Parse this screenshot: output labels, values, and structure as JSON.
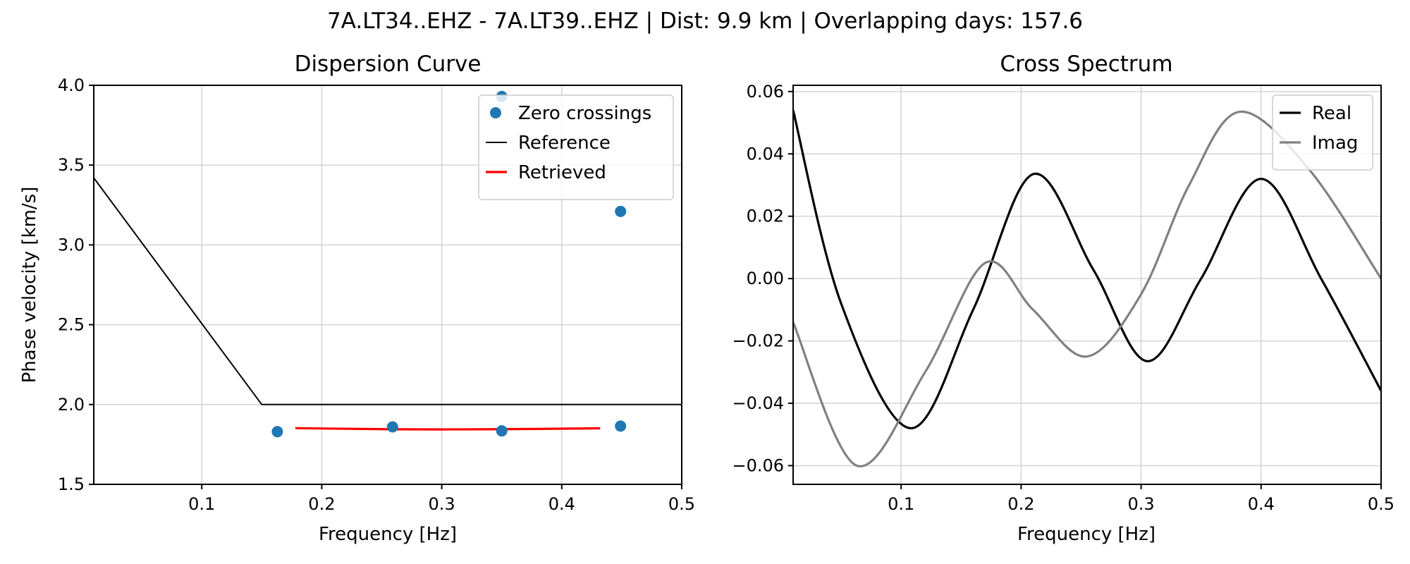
{
  "figure": {
    "suptitle": "7A.LT34..EHZ - 7A.LT39..EHZ | Dist: 9.9 km | Overlapping days: 157.6"
  },
  "chart_data": [
    {
      "type": "line",
      "title": "Dispersion Curve",
      "xlabel": "Frequency [Hz]",
      "ylabel": "Phase velocity [km/s]",
      "xlim": [
        0.01,
        0.5
      ],
      "ylim": [
        1.5,
        4.0
      ],
      "xticks": [
        0.1,
        0.2,
        0.3,
        0.4,
        0.5
      ],
      "xtick_labels": [
        "0.1",
        "0.2",
        "0.3",
        "0.4",
        "0.5"
      ],
      "yticks": [
        1.5,
        2.0,
        2.5,
        3.0,
        3.5,
        4.0
      ],
      "ytick_labels": [
        "1.5",
        "2.0",
        "2.5",
        "3.0",
        "3.5",
        "4.0"
      ],
      "grid": true,
      "legend_position": "top-right",
      "series": [
        {
          "name": "Zero crossings",
          "kind": "scatter",
          "color": "#1f77b4",
          "x": [
            0.163,
            0.259,
            0.35,
            0.449,
            0.35,
            0.449
          ],
          "y": [
            1.83,
            1.86,
            1.835,
            1.865,
            3.93,
            3.21
          ]
        },
        {
          "name": "Reference",
          "kind": "line",
          "color": "#000000",
          "x": [
            0.01,
            0.15,
            0.5
          ],
          "y": [
            3.42,
            2.0,
            2.0
          ]
        },
        {
          "name": "Retrieved",
          "kind": "line",
          "color": "#ff0000",
          "x": [
            0.178,
            0.22,
            0.26,
            0.3,
            0.34,
            0.38,
            0.432
          ],
          "y": [
            1.852,
            1.848,
            1.845,
            1.844,
            1.845,
            1.847,
            1.851
          ]
        }
      ]
    },
    {
      "type": "line",
      "title": "Cross Spectrum",
      "xlabel": "Frequency [Hz]",
      "ylabel": "",
      "xlim": [
        0.01,
        0.5
      ],
      "ylim": [
        -0.066,
        0.062
      ],
      "xticks": [
        0.1,
        0.2,
        0.3,
        0.4,
        0.5
      ],
      "xtick_labels": [
        "0.1",
        "0.2",
        "0.3",
        "0.4",
        "0.5"
      ],
      "yticks": [
        -0.06,
        -0.04,
        -0.02,
        0.0,
        0.02,
        0.04,
        0.06
      ],
      "ytick_labels": [
        "−0.06",
        "−0.04",
        "−0.02",
        "0.00",
        "0.02",
        "0.04",
        "0.06"
      ],
      "grid": true,
      "legend_position": "top-right",
      "series": [
        {
          "name": "Real",
          "kind": "line",
          "color": "#000000",
          "x": [
            0.01,
            0.05,
            0.108,
            0.16,
            0.21,
            0.26,
            0.305,
            0.35,
            0.4,
            0.45,
            0.5
          ],
          "y": [
            0.054,
            -0.008,
            -0.048,
            -0.01,
            0.0335,
            0.003,
            -0.0265,
            0.0,
            0.032,
            0.0,
            -0.036
          ]
        },
        {
          "name": "Imag",
          "kind": "line",
          "color": "#808080",
          "x": [
            0.01,
            0.063,
            0.12,
            0.17,
            0.21,
            0.255,
            0.3,
            0.34,
            0.382,
            0.44,
            0.5
          ],
          "y": [
            -0.014,
            -0.06,
            -0.03,
            0.005,
            -0.01,
            -0.025,
            -0.005,
            0.03,
            0.0535,
            0.035,
            0.0
          ]
        }
      ]
    }
  ]
}
